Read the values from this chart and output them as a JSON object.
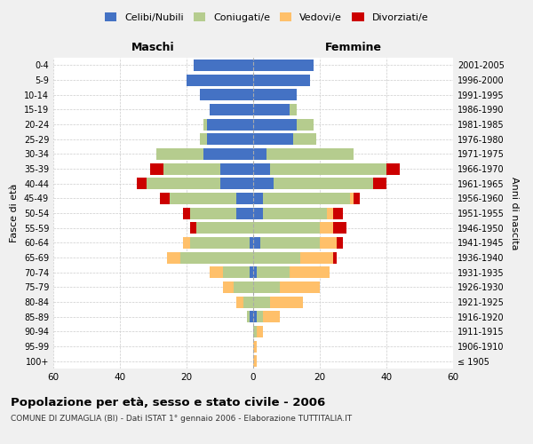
{
  "age_groups": [
    "100+",
    "95-99",
    "90-94",
    "85-89",
    "80-84",
    "75-79",
    "70-74",
    "65-69",
    "60-64",
    "55-59",
    "50-54",
    "45-49",
    "40-44",
    "35-39",
    "30-34",
    "25-29",
    "20-24",
    "15-19",
    "10-14",
    "5-9",
    "0-4"
  ],
  "birth_years": [
    "≤ 1905",
    "1906-1910",
    "1911-1915",
    "1916-1920",
    "1921-1925",
    "1926-1930",
    "1931-1935",
    "1936-1940",
    "1941-1945",
    "1946-1950",
    "1951-1955",
    "1956-1960",
    "1961-1965",
    "1966-1970",
    "1971-1975",
    "1976-1980",
    "1981-1985",
    "1986-1990",
    "1991-1995",
    "1996-2000",
    "2001-2005"
  ],
  "male_celibi": [
    0,
    0,
    0,
    1,
    0,
    0,
    1,
    0,
    1,
    0,
    5,
    5,
    10,
    10,
    15,
    14,
    14,
    13,
    16,
    20,
    18
  ],
  "male_coniugati": [
    0,
    0,
    0,
    1,
    3,
    6,
    8,
    22,
    18,
    17,
    14,
    20,
    22,
    17,
    14,
    2,
    1,
    0,
    0,
    0,
    0
  ],
  "male_vedovi": [
    0,
    0,
    0,
    0,
    2,
    3,
    4,
    4,
    2,
    0,
    0,
    0,
    0,
    0,
    0,
    0,
    0,
    0,
    0,
    0,
    0
  ],
  "male_divorziati": [
    0,
    0,
    0,
    0,
    0,
    0,
    0,
    0,
    0,
    2,
    2,
    3,
    3,
    4,
    0,
    0,
    0,
    0,
    0,
    0,
    0
  ],
  "female_celibi": [
    0,
    0,
    0,
    1,
    0,
    0,
    1,
    0,
    2,
    0,
    3,
    3,
    6,
    5,
    4,
    12,
    13,
    11,
    13,
    17,
    18
  ],
  "female_coniugati": [
    0,
    0,
    1,
    2,
    5,
    8,
    10,
    14,
    18,
    20,
    19,
    26,
    30,
    35,
    26,
    7,
    5,
    2,
    0,
    0,
    0
  ],
  "female_vedovi": [
    1,
    1,
    2,
    5,
    10,
    12,
    12,
    10,
    5,
    4,
    2,
    1,
    0,
    0,
    0,
    0,
    0,
    0,
    0,
    0,
    0
  ],
  "female_divorziati": [
    0,
    0,
    0,
    0,
    0,
    0,
    0,
    1,
    2,
    4,
    3,
    2,
    4,
    4,
    0,
    0,
    0,
    0,
    0,
    0,
    0
  ],
  "color_celibi": "#4472C4",
  "color_coniugati": "#b5cc8e",
  "color_vedovi": "#ffc06a",
  "color_divorziati": "#cc0000",
  "title": "Popolazione per età, sesso e stato civile - 2006",
  "subtitle": "COMUNE DI ZUMAGLIA (BI) - Dati ISTAT 1° gennaio 2006 - Elaborazione TUTTITALIA.IT",
  "xlabel_left": "Maschi",
  "xlabel_right": "Femmine",
  "ylabel_left": "Fasce di età",
  "ylabel_right": "Anni di nascita",
  "xlim": 60,
  "background_color": "#f0f0f0",
  "plot_bg_color": "#ffffff"
}
